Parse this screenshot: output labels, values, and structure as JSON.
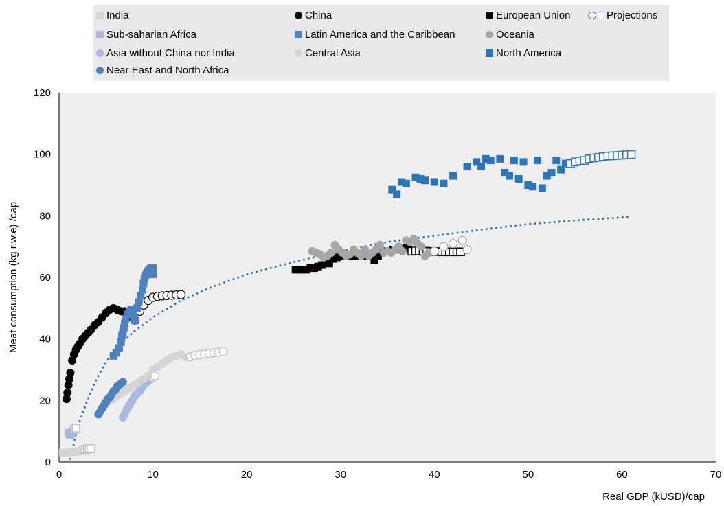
{
  "chart_data": {
    "type": "scatter",
    "xlabel": "Real GDP (kUSD)/cap",
    "ylabel": "Meat consumption  (kg r.w.e) /cap",
    "xlim": [
      0,
      70
    ],
    "ylim": [
      0,
      120
    ],
    "xticks": [
      "0",
      "10",
      "20",
      "30",
      "40",
      "50",
      "60",
      "70"
    ],
    "yticks": [
      "0",
      "20",
      "40",
      "60",
      "80",
      "100",
      "120"
    ],
    "grid": false,
    "legend_position": "top",
    "legend": [
      {
        "label": "India",
        "marker": "square",
        "color": "#d4d4d4"
      },
      {
        "label": "China",
        "marker": "circle",
        "color": "#000000"
      },
      {
        "label": "European Union",
        "marker": "square",
        "color": "#000000"
      },
      {
        "label": "Projections",
        "marker": "hollow-circle-square",
        "color": "#4a77b4"
      },
      {
        "label": "Sub-saharian Africa",
        "marker": "square",
        "color": "#a9b9e0"
      },
      {
        "label": "Latin America and the Caribbean",
        "marker": "square",
        "color": "#4f81bd"
      },
      {
        "label": "Oceania",
        "marker": "circle",
        "color": "#a6a6a6"
      },
      {
        "label": "Asia without China nor India",
        "marker": "circle",
        "color": "#a9b9e0"
      },
      {
        "label": "Central Asia",
        "marker": "circle",
        "color": "#d4d4d4"
      },
      {
        "label": "North America",
        "marker": "square",
        "color": "#2e75b6"
      },
      {
        "label": "Near East and North Africa",
        "marker": "circle",
        "color": "#4f81bd"
      }
    ],
    "series": [
      {
        "name": "India",
        "marker": "square",
        "color": "#d4d4d4",
        "x": [
          0.4,
          0.6,
          0.8,
          1.0,
          1.2,
          1.4,
          1.6,
          1.8,
          2.0,
          2.2,
          2.4,
          2.6
        ],
        "y": [
          3.0,
          3.0,
          3.1,
          3.1,
          3.2,
          3.2,
          3.3,
          3.4,
          3.5,
          3.6,
          3.8,
          4.0
        ],
        "proj_x": [
          2.8,
          3.0,
          3.2,
          3.4
        ],
        "proj_y": [
          4.1,
          4.2,
          4.3,
          4.4
        ]
      },
      {
        "name": "China",
        "marker": "circle",
        "color": "#000000",
        "x": [
          0.8,
          0.9,
          1.0,
          1.1,
          1.2,
          1.4,
          1.6,
          1.8,
          2.0,
          2.2,
          2.5,
          2.8,
          3.1,
          3.4,
          3.8,
          4.2,
          4.6,
          5.0,
          5.4,
          5.8,
          6.2,
          6.6,
          7.0,
          7.4,
          7.8,
          8.1
        ],
        "y": [
          20.5,
          22.5,
          25,
          27,
          29,
          33,
          35,
          36.5,
          37.5,
          38.5,
          40,
          41,
          42,
          43,
          44.5,
          45.5,
          47,
          48.5,
          49.5,
          50,
          49.5,
          49,
          49,
          48,
          47,
          46
        ],
        "proj_x": [
          8.6,
          9.0,
          9.5,
          10.0,
          10.5,
          11.0,
          11.5,
          12.0,
          12.5,
          13.0
        ],
        "proj_y": [
          49,
          51,
          52.5,
          53.5,
          53.8,
          54,
          54.1,
          54.2,
          54.3,
          54.4
        ]
      },
      {
        "name": "European Union",
        "marker": "square",
        "color": "#000000",
        "x": [
          25.2,
          25.6,
          26.0,
          26.4,
          26.8,
          27.2,
          27.6,
          28.0,
          28.4,
          28.8,
          29.2,
          29.6,
          30.0,
          30.4,
          30.8,
          31.2,
          31.6,
          32.0,
          32.4,
          32.8,
          33.2,
          33.6,
          34.0,
          34.4,
          35.0,
          35.6,
          36.2,
          36.8,
          37.2
        ],
        "y": [
          62.5,
          62.5,
          62.5,
          62.5,
          63,
          63,
          63.5,
          64,
          65,
          64.5,
          66,
          66.5,
          67,
          67,
          67,
          67,
          67.5,
          67,
          67,
          67,
          67,
          65.5,
          67,
          68,
          68.5,
          69,
          69,
          69.5,
          70
        ],
        "proj_x": [
          37.6,
          38.0,
          38.4,
          38.8,
          39.2,
          39.6,
          40.0,
          40.4,
          40.8,
          41.2,
          41.6,
          42.0,
          42.4,
          42.8
        ],
        "proj_y": [
          68.5,
          68.6,
          68.6,
          68.5,
          68.5,
          68.4,
          68.4,
          68.4,
          68.3,
          68.3,
          68.3,
          68.3,
          68.3,
          68.3
        ]
      },
      {
        "name": "Sub-saharian Africa",
        "marker": "square",
        "color": "#a9b9e0",
        "x": [
          1.0,
          1.1,
          1.2,
          1.3,
          1.4
        ],
        "y": [
          9.5,
          9.0,
          8.8,
          9.2,
          9.8
        ],
        "proj_x": [
          1.6,
          1.8
        ],
        "proj_y": [
          10.5,
          11
        ]
      },
      {
        "name": "Latin America and the Caribbean",
        "marker": "square",
        "color": "#4f81bd",
        "x": [
          5.8,
          6.1,
          6.4,
          6.6,
          6.7,
          6.8,
          6.9,
          7.0,
          7.1,
          7.3,
          7.5,
          7.7,
          7.9,
          8.0,
          8.1,
          8.3,
          8.5,
          8.7,
          8.9,
          9.0,
          9.1,
          9.2,
          9.3,
          9.4,
          9.5,
          9.6,
          9.8,
          10.0,
          10.0
        ],
        "y": [
          34.5,
          35.5,
          37,
          39,
          41,
          42,
          43.5,
          45,
          46.5,
          48,
          49,
          49.5,
          48,
          47,
          46,
          50,
          52,
          54,
          56,
          58,
          59.5,
          60.5,
          61,
          61.5,
          62,
          62.5,
          63,
          63,
          61
        ],
        "proj_x": [],
        "proj_y": []
      },
      {
        "name": "Oceania",
        "marker": "circle",
        "color": "#a6a6a6",
        "x": [
          27.0,
          27.4,
          27.8,
          28.2,
          28.6,
          29.0,
          29.4,
          29.8,
          30.2,
          30.6,
          31.0,
          31.4,
          31.8,
          32.2,
          32.6,
          33.0,
          33.4,
          33.8,
          34.2,
          34.6,
          35.0,
          35.4,
          35.8,
          36.2,
          36.6,
          37.0,
          37.4,
          37.8,
          38.2,
          38.6,
          39.0,
          39.4
        ],
        "y": [
          68.5,
          68,
          67.5,
          66.5,
          67,
          68,
          70.5,
          69,
          68,
          67,
          67.5,
          69,
          68,
          67,
          69,
          67,
          68,
          69,
          70.5,
          68,
          68.5,
          68,
          69,
          70,
          68.5,
          72,
          71.5,
          72.5,
          71,
          70,
          67,
          68
        ],
        "proj_x": [
          40.0,
          41.0,
          42.0,
          43.0,
          43.5
        ],
        "proj_y": [
          68.5,
          70,
          71,
          72,
          69
        ]
      },
      {
        "name": "Asia without China nor India",
        "marker": "circle",
        "color": "#a9b9e0",
        "x": [
          6.8,
          7.0,
          7.2,
          7.4,
          7.6,
          7.8,
          8.0,
          8.2,
          8.4,
          8.6,
          8.8,
          9.0,
          9.2,
          9.4,
          9.6,
          9.8
        ],
        "y": [
          14.5,
          15.5,
          17,
          18,
          19,
          20,
          21,
          22,
          22.5,
          23,
          24,
          25,
          25.5,
          26,
          26.5,
          27
        ],
        "proj_x": [
          10.0,
          10.2
        ],
        "proj_y": [
          27.5,
          28
        ]
      },
      {
        "name": "Central Asia",
        "marker": "circle",
        "color": "#d4d4d4",
        "x": [
          5.0,
          5.5,
          6.0,
          6.5,
          7.0,
          7.5,
          8.0,
          8.5,
          9.0,
          9.5,
          10.0,
          10.5,
          11.0,
          11.5,
          12.0,
          12.5,
          13.0,
          13.5
        ],
        "y": [
          19,
          20,
          21,
          22,
          23,
          24,
          25,
          26,
          27,
          28,
          30,
          31,
          32,
          33,
          34,
          34.5,
          35,
          34
        ],
        "proj_x": [
          14.0,
          14.5,
          15.0,
          15.5,
          16.0,
          16.5,
          17.0,
          17.5
        ],
        "proj_y": [
          34.2,
          34.6,
          34.9,
          35.1,
          35.3,
          35.5,
          35.7,
          35.9
        ]
      },
      {
        "name": "North America",
        "marker": "square",
        "color": "#2e75b6",
        "x": [
          35.5,
          36.0,
          36.5,
          37.0,
          38.0,
          38.5,
          39.0,
          40.0,
          41.0,
          42.0,
          43.5,
          44.5,
          45.0,
          45.5,
          46.0,
          47.0,
          47.5,
          48.0,
          48.5,
          49.0,
          49.5,
          50.0,
          50.5,
          51.0,
          51.5,
          52.0,
          52.5,
          53.0,
          53.5,
          54.0
        ],
        "y": [
          88.5,
          87,
          91,
          90.5,
          92.5,
          92,
          91.5,
          91,
          90.5,
          93,
          96,
          97.5,
          96,
          98.5,
          98,
          98.5,
          94,
          93,
          98,
          92,
          97.5,
          90,
          89.5,
          98,
          89,
          93,
          94,
          98,
          95,
          97
        ],
        "proj_x": [
          54.5,
          55.0,
          55.5,
          56.0,
          56.5,
          57.0,
          57.5,
          58.0,
          58.5,
          59.0,
          59.5,
          60.0,
          60.5,
          61.0
        ],
        "proj_y": [
          97,
          97.5,
          97.8,
          98,
          98.5,
          98.8,
          99,
          99.2,
          99.4,
          99.5,
          99.6,
          99.7,
          99.8,
          99.9
        ]
      },
      {
        "name": "Near East and North Africa",
        "marker": "circle",
        "color": "#4f81bd",
        "x": [
          4.2,
          4.4,
          4.6,
          4.8,
          5.0,
          5.2,
          5.4,
          5.6,
          5.8,
          6.0,
          6.2,
          6.4,
          6.6,
          6.8
        ],
        "y": [
          15.5,
          16.5,
          17.5,
          18.5,
          19.5,
          20.5,
          21,
          22,
          23,
          23.5,
          24.5,
          25,
          25.5,
          26
        ],
        "proj_x": [],
        "proj_y": []
      }
    ],
    "trendline": {
      "style": "dotted",
      "color": "#2e75b6",
      "type": "logarithmic",
      "x": [
        1.2,
        2,
        3,
        4,
        5,
        6,
        8,
        10,
        13,
        16,
        20,
        25,
        30,
        35,
        40,
        45,
        50,
        55,
        61
      ],
      "y": [
        1,
        11.5,
        20,
        27,
        32.5,
        36.5,
        42.5,
        47,
        52.5,
        56.5,
        61,
        65,
        68.5,
        71.5,
        73.5,
        75.5,
        77.3,
        78.5,
        79.7
      ]
    }
  }
}
